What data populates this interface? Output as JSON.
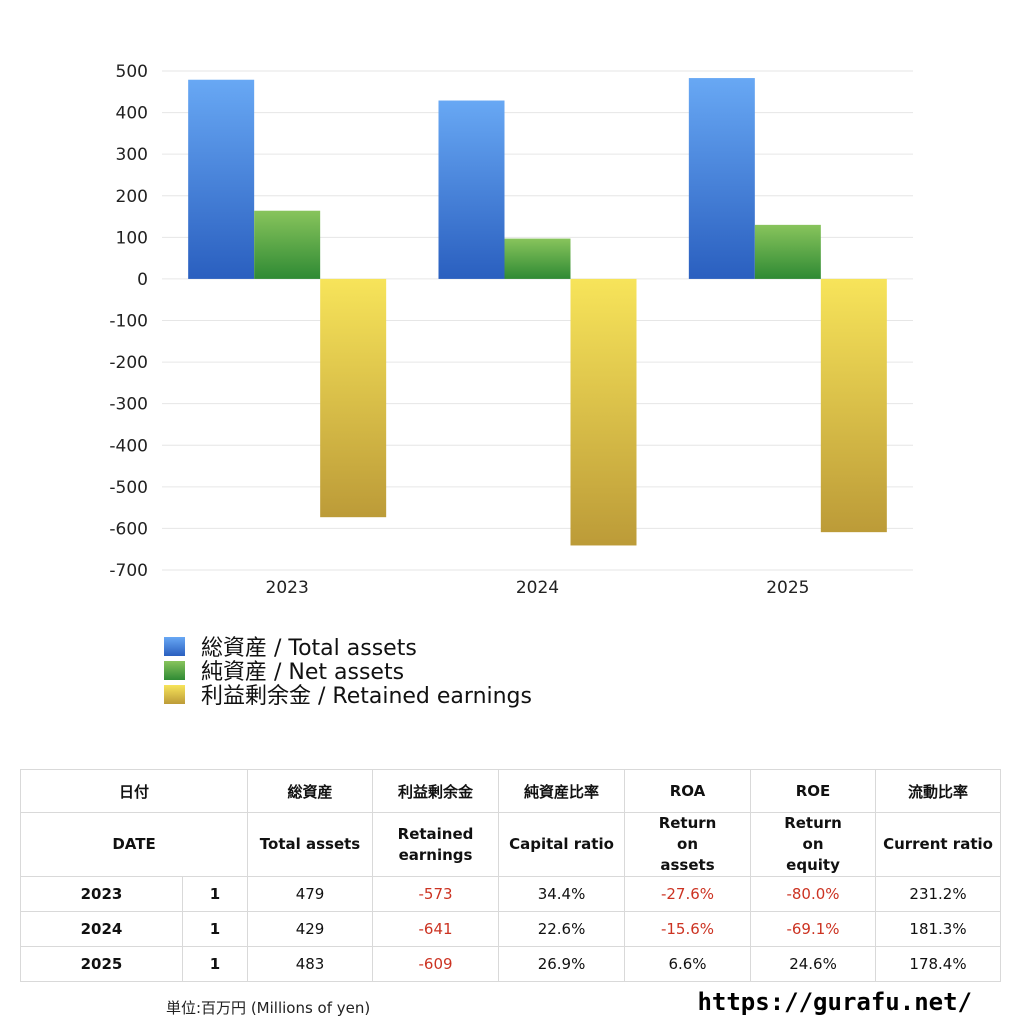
{
  "chart_data": {
    "type": "bar",
    "categories": [
      "2023",
      "2024",
      "2025"
    ],
    "series": [
      {
        "name": "総資産 / Total assets",
        "values": [
          479,
          429,
          483
        ],
        "color": "#3f7fe0"
      },
      {
        "name": "純資産 / Net assets",
        "values": [
          164,
          97,
          130
        ],
        "color": "#4caa44"
      },
      {
        "name": "利益剰余金 / Retained earnings",
        "values": [
          -573,
          -641,
          -609
        ],
        "color": "#e4cf50"
      }
    ],
    "ylim": [
      -700,
      500
    ],
    "yticks": [
      500,
      400,
      300,
      200,
      100,
      0,
      -100,
      -200,
      -300,
      -400,
      -500,
      -600,
      -700
    ],
    "grid": true,
    "legend_position": "bottom-left"
  },
  "table": {
    "header_jp": [
      "日付",
      "総資産",
      "利益剰余金",
      "純資産比率",
      "ROA",
      "ROE",
      "流動比率"
    ],
    "header_en": [
      "DATE",
      "Total assets",
      "Retained earnings",
      "Capital ratio",
      "Return on assets",
      "Return on equity",
      "Current ratio"
    ],
    "rows": [
      {
        "year": "2023",
        "month": "1",
        "total_assets": "479",
        "retained_earnings": "-573",
        "capital_ratio": "34.4%",
        "roa": "-27.6%",
        "roe": "-80.0%",
        "current_ratio": "231.2%"
      },
      {
        "year": "2024",
        "month": "1",
        "total_assets": "429",
        "retained_earnings": "-641",
        "capital_ratio": "22.6%",
        "roa": "-15.6%",
        "roe": "-69.1%",
        "current_ratio": "181.3%"
      },
      {
        "year": "2025",
        "month": "1",
        "total_assets": "483",
        "retained_earnings": "-609",
        "capital_ratio": "26.9%",
        "roa": "6.6%",
        "roe": "24.6%",
        "current_ratio": "178.4%"
      }
    ],
    "negative_color": "#cc3322"
  },
  "footer": {
    "unit": "単位:百万円 (Millions of yen)",
    "url": "https://gurafu.net/"
  }
}
